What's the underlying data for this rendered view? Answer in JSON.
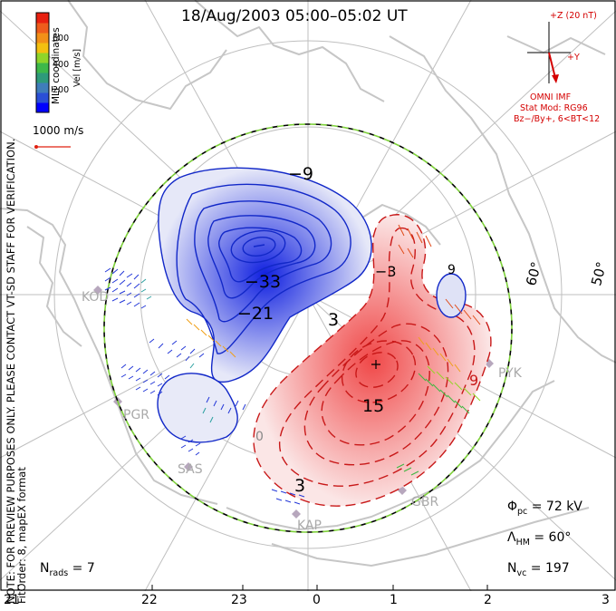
{
  "title": "18/Aug/2003 05:00–05:02 UT",
  "side_note": {
    "line1": "NOTE: FOR PREVIEW PURPOSES ONLY. PLEASE CONTACT VT-SD STAFF FOR VERIFICATION.",
    "line2": "FitOrder: 8, mapEX format"
  },
  "coord_label": "MLT coordinates",
  "colorbar": {
    "label": "Vel [m/s]",
    "ticks": [
      "600",
      "400",
      "200"
    ],
    "colors": [
      "#0000ff",
      "#2a4fd6",
      "#3f7dba",
      "#2e9a7a",
      "#3db84a",
      "#8fd42a",
      "#f3c010",
      "#f29018",
      "#ee5c1c",
      "#e82010"
    ]
  },
  "vector_scale": "1000 m/s",
  "imf": {
    "bz_label": "+Z (20 nT)",
    "by_label": "+Y",
    "source": "OMNI IMF",
    "model": "Stat Mod: RG96",
    "condition": "Bz−/By+, 6<BT<12"
  },
  "contour_labels": [
    "−9",
    "−33",
    "−21",
    "−3",
    "3",
    "15",
    "3",
    "9",
    "9",
    "0"
  ],
  "stations": [
    "KOD",
    "PGR",
    "SAS",
    "KAP",
    "GBR",
    "PYK"
  ],
  "lat_labels": [
    "60°",
    "50°"
  ],
  "stats": {
    "phi_pc": {
      "symbol": "Φ",
      "sub": "pc",
      "value": "= 72 kV"
    },
    "lambda_hm": {
      "symbol": "Λ",
      "sub": "HM",
      "value": "= 60°"
    },
    "n_vc": {
      "symbol": "N",
      "sub": "vc",
      "value": "= 197"
    },
    "n_rads": {
      "symbol": "N",
      "sub": "rads",
      "value": "= 7"
    }
  },
  "mlt_axis": [
    "21",
    "22",
    "23",
    "0",
    "1",
    "2",
    "3"
  ]
}
